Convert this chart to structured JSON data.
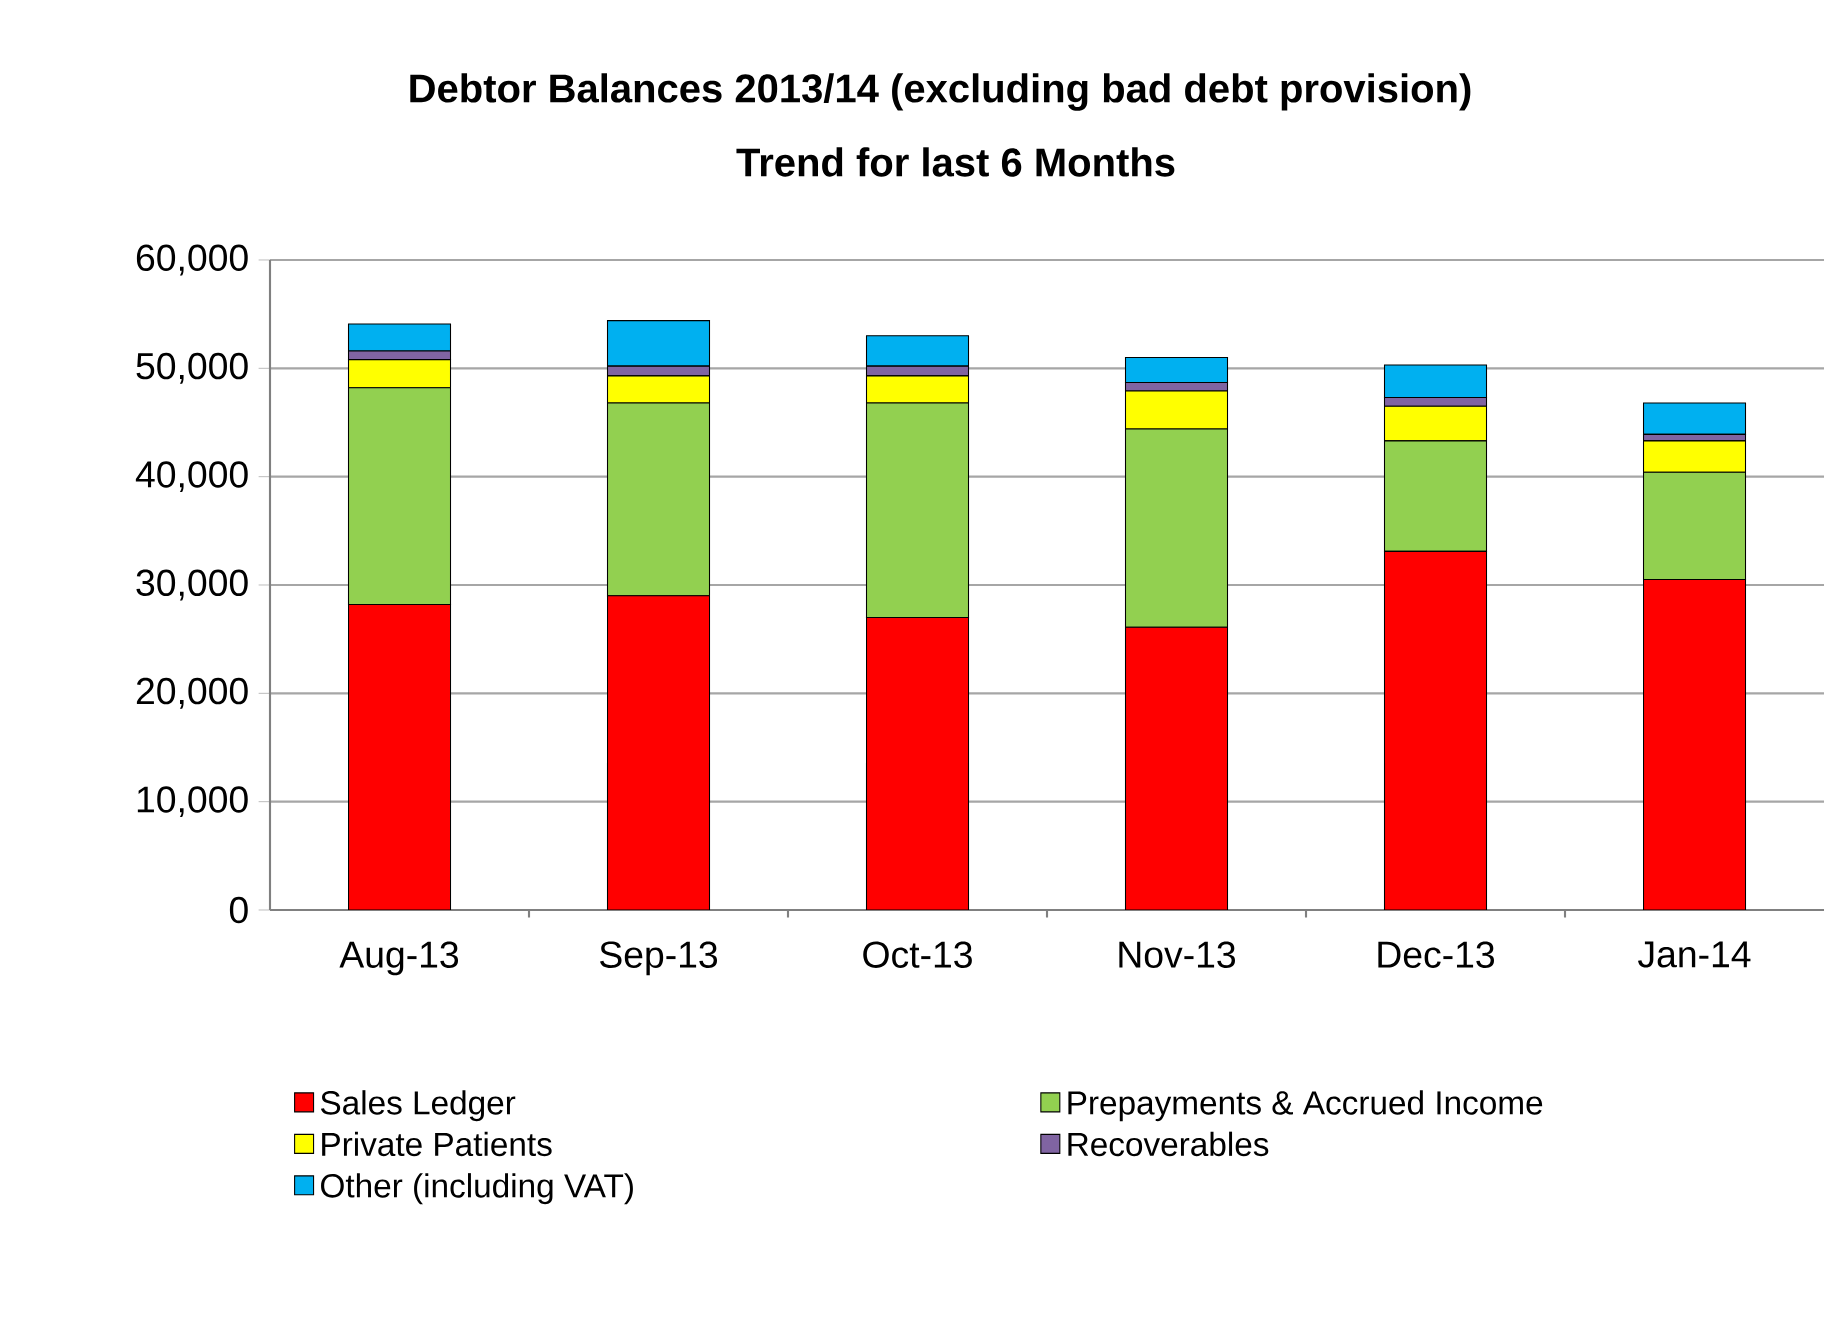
{
  "chart_data": {
    "type": "bar",
    "stacked": true,
    "title": "Debtor Balances 2013/14 (excluding bad debt provision)",
    "subtitle": "Trend for last 6 Months",
    "categories": [
      "Aug-13",
      "Sep-13",
      "Oct-13",
      "Nov-13",
      "Dec-13",
      "Jan-14"
    ],
    "series": [
      {
        "name": "Sales Ledger",
        "color": "#ff0000",
        "values": [
          28200,
          29000,
          27000,
          26100,
          33100,
          30500
        ]
      },
      {
        "name": "Prepayments & Accrued Income",
        "color": "#92d050",
        "values": [
          20000,
          17800,
          19800,
          18300,
          10200,
          9900
        ]
      },
      {
        "name": "Private Patients",
        "color": "#ffff00",
        "values": [
          2600,
          2500,
          2500,
          3500,
          3200,
          2900
        ]
      },
      {
        "name": "Recoverables",
        "color": "#8064a2",
        "values": [
          800,
          900,
          900,
          800,
          800,
          600
        ]
      },
      {
        "name": "Other (including VAT)",
        "color": "#00b0f0",
        "values": [
          2500,
          4200,
          2800,
          2300,
          3000,
          2900
        ]
      }
    ],
    "ylim": [
      0,
      60000
    ],
    "yticks": [
      0,
      {
        "value": 10000,
        "label": "10,000"
      },
      {
        "value": 20000,
        "label": "20,000"
      },
      {
        "value": 30000,
        "label": "30,000"
      },
      {
        "value": 40000,
        "label": "40,000"
      },
      {
        "value": 50000,
        "label": "50,000"
      },
      {
        "value": 60000,
        "label": "60,000"
      }
    ],
    "grid": "y",
    "legend": "bottom"
  }
}
